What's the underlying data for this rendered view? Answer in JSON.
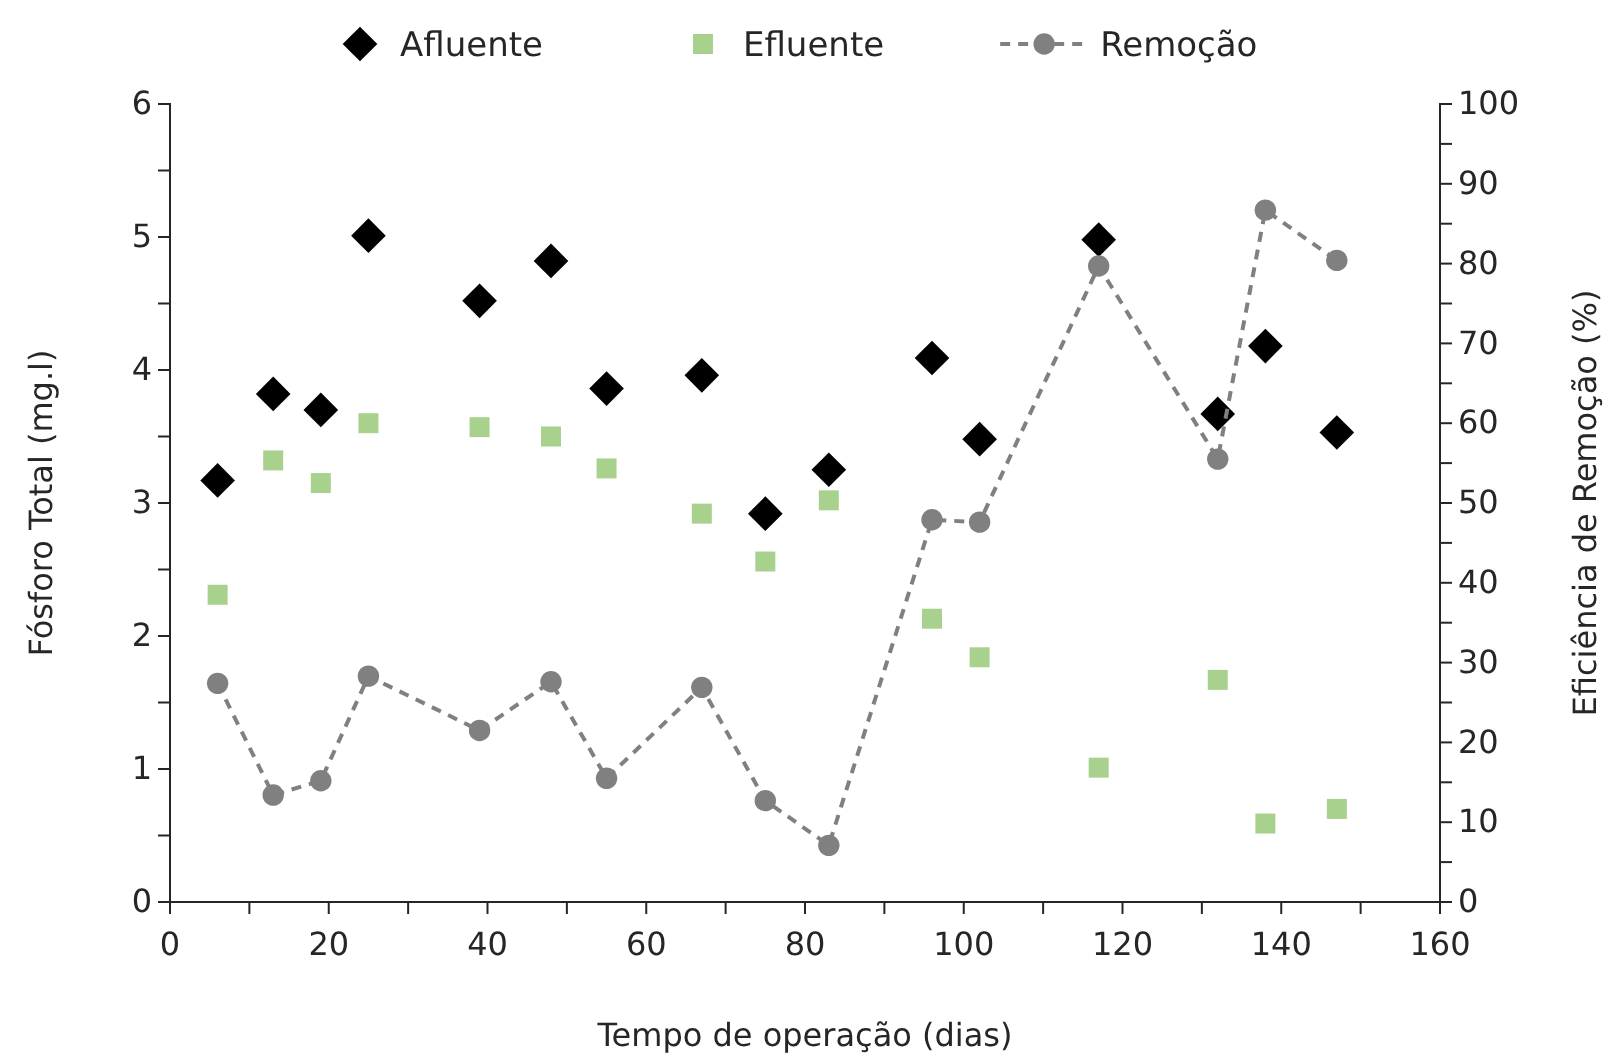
{
  "chart_data": {
    "type": "scatter",
    "xlabel": "Tempo de operação (dias)",
    "ylabel": "Fósforo Total (mg.l)",
    "y2label": "Eficiência de Remoção (%)",
    "x": [
      6,
      13,
      19,
      25,
      39,
      48,
      55,
      67,
      75,
      83,
      96,
      102,
      117,
      132,
      138,
      147
    ],
    "series": [
      {
        "name": "Afluente",
        "color": "#000000",
        "marker": "diamond",
        "values": [
          3.17,
          3.82,
          3.7,
          5.01,
          4.52,
          4.82,
          3.86,
          3.96,
          2.92,
          3.25,
          4.09,
          3.48,
          4.98,
          3.67,
          4.18,
          3.53
        ]
      },
      {
        "name": "Efluente",
        "color": "#a9d18e",
        "marker": "square",
        "values": [
          2.31,
          3.32,
          3.15,
          3.6,
          3.57,
          3.5,
          3.26,
          2.92,
          2.56,
          3.02,
          2.13,
          1.84,
          1.01,
          1.67,
          0.59,
          0.7
        ]
      },
      {
        "name": "Remoção",
        "type": "line",
        "axis": "y2",
        "color": "#808080",
        "marker": "circle",
        "line_style": "dashed",
        "values": [
          27.4,
          13.4,
          15.2,
          28.3,
          21.5,
          27.6,
          15.5,
          26.9,
          12.7,
          7.1,
          47.9,
          47.6,
          79.7,
          55.5,
          86.7,
          80.4
        ]
      }
    ],
    "xlim": [
      0,
      160
    ],
    "xticks": [
      0,
      {
        "value": 10,
        "label": null
      },
      20,
      {
        "value": 30,
        "label": null
      },
      40,
      {
        "value": 50,
        "label": null
      },
      60,
      {
        "value": 70,
        "label": null
      },
      80,
      {
        "value": 90,
        "label": null
      },
      100,
      {
        "value": 110,
        "label": null
      },
      120,
      {
        "value": 130,
        "label": null
      },
      140,
      {
        "value": 150,
        "label": null
      },
      160
    ],
    "ylim": [
      0,
      6
    ],
    "yticks": [
      0,
      {
        "value": 0.5,
        "label": null
      },
      1,
      {
        "value": 1.5,
        "label": null
      },
      2,
      {
        "value": 2.5,
        "label": null
      },
      3,
      {
        "value": 3.5,
        "label": null
      },
      4,
      {
        "value": 4.5,
        "label": null
      },
      5,
      {
        "value": 5.5,
        "label": null
      },
      6
    ],
    "y2lim": [
      0,
      100
    ],
    "y2ticks": [
      0,
      {
        "value": 5,
        "label": null
      },
      10,
      {
        "value": 15,
        "label": null
      },
      20,
      {
        "value": 25,
        "label": null
      },
      30,
      {
        "value": 35,
        "label": null
      },
      40,
      {
        "value": 45,
        "label": null
      },
      50,
      {
        "value": 55,
        "label": null
      },
      60,
      {
        "value": 65,
        "label": null
      },
      70,
      {
        "value": 75,
        "label": null
      },
      80,
      {
        "value": 85,
        "label": null
      },
      90,
      {
        "value": 95,
        "label": null
      },
      100
    ],
    "grid": false,
    "legend": "top"
  }
}
